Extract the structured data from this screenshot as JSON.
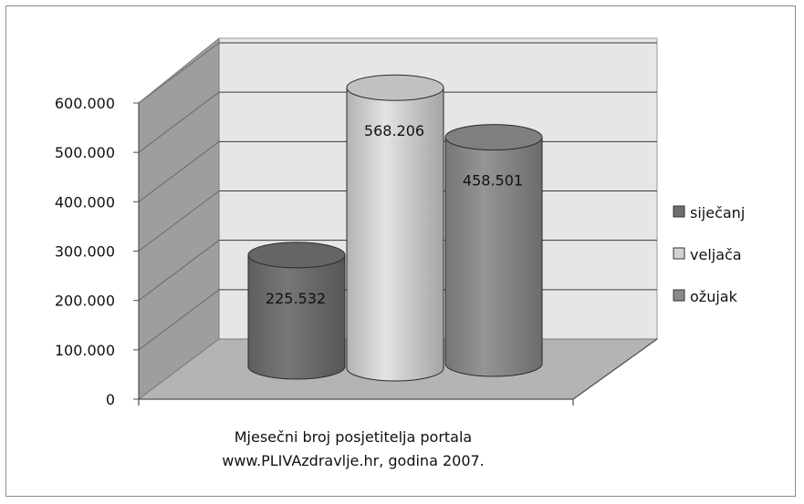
{
  "chart_data": {
    "type": "bar",
    "style": "3d-cylinder",
    "categories": [
      "Mjesečni broj posjetitelja portala www.PLIVAzdravlje.hr, godina 2007."
    ],
    "category_lines": [
      "Mjesečni broj posjetitelja portala",
      "www.PLIVAzdravlje.hr, godina 2007."
    ],
    "series": [
      {
        "name": "siječanj",
        "values": [
          225532
        ],
        "label": "225.532",
        "color": "#6e6e6e"
      },
      {
        "name": "veljača",
        "values": [
          568206
        ],
        "label": "568.206",
        "color": "#d2d2d2"
      },
      {
        "name": "ožujak",
        "values": [
          458501
        ],
        "label": "458.501",
        "color": "#8a8a8a"
      }
    ],
    "yticks": [
      "0",
      "100.000",
      "200.000",
      "300.000",
      "400.000",
      "500.000",
      "600.000"
    ],
    "ylim": [
      0,
      600000
    ],
    "grid": true,
    "legend_position": "right",
    "colors": {
      "wall_back": "#e6e6e6",
      "wall_side": "#9e9e9e",
      "floor": "#b4b4b4",
      "gridline": "#3a3a3a",
      "axis": "#505050"
    }
  }
}
